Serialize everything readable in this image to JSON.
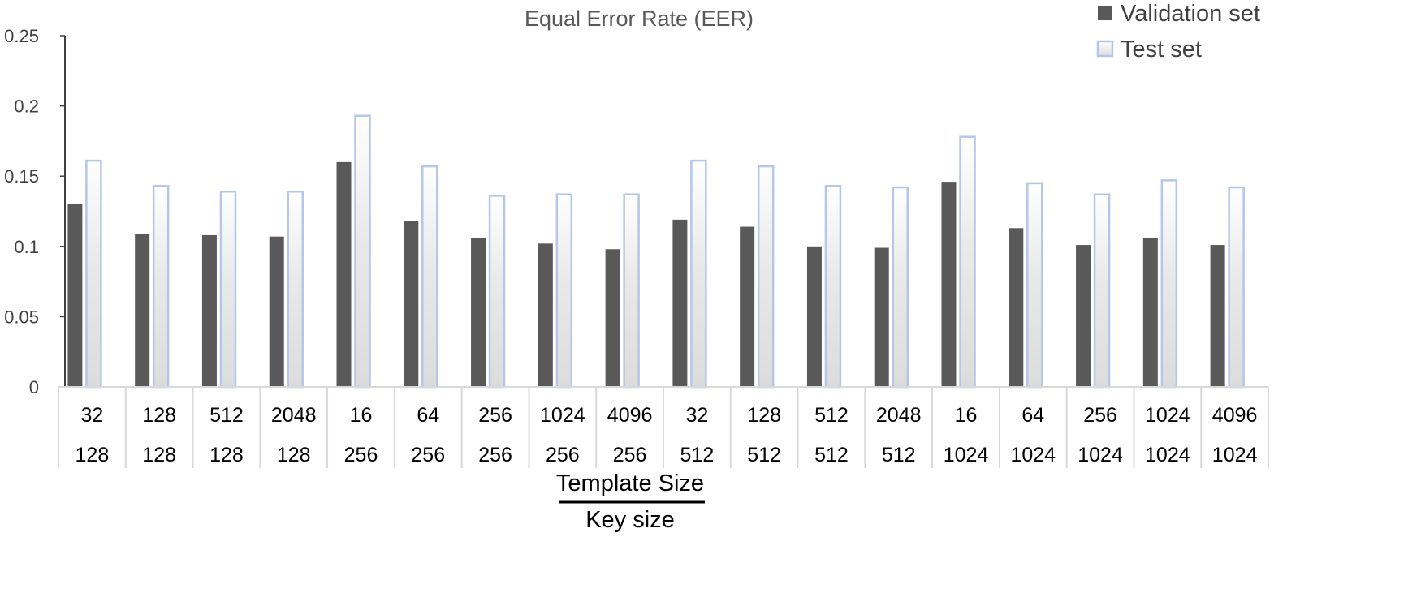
{
  "chart_data": {
    "type": "bar",
    "title": "Equal Error  Rate (EER)",
    "xlabel_top": "Template Size",
    "xlabel_bottom": "Key size",
    "ylim": [
      0,
      0.25
    ],
    "yticks": [
      "0",
      "0.05",
      "0.1",
      "0.15",
      "0.2",
      "0.25"
    ],
    "grid": false,
    "legend_position": "top-right",
    "categories_template": [
      "32",
      "128",
      "512",
      "2048",
      "16",
      "64",
      "256",
      "1024",
      "4096",
      "32",
      "128",
      "512",
      "2048",
      "16",
      "64",
      "256",
      "1024",
      "4096"
    ],
    "categories_key": [
      "128",
      "128",
      "128",
      "128",
      "256",
      "256",
      "256",
      "256",
      "256",
      "512",
      "512",
      "512",
      "512",
      "1024",
      "1024",
      "1024",
      "1024",
      "1024"
    ],
    "series": [
      {
        "name": "Validation set",
        "color": "#595959",
        "values": [
          0.13,
          0.109,
          0.108,
          0.107,
          0.16,
          0.118,
          0.106,
          0.102,
          0.098,
          0.119,
          0.114,
          0.1,
          0.099,
          0.146,
          0.113,
          0.101,
          0.106,
          0.101
        ]
      },
      {
        "name": "Test  set",
        "color": "#b4c7e7",
        "values": [
          0.161,
          0.143,
          0.139,
          0.139,
          0.193,
          0.157,
          0.136,
          0.137,
          0.137,
          0.161,
          0.157,
          0.143,
          0.142,
          0.178,
          0.145,
          0.137,
          0.147,
          0.142
        ]
      }
    ]
  }
}
